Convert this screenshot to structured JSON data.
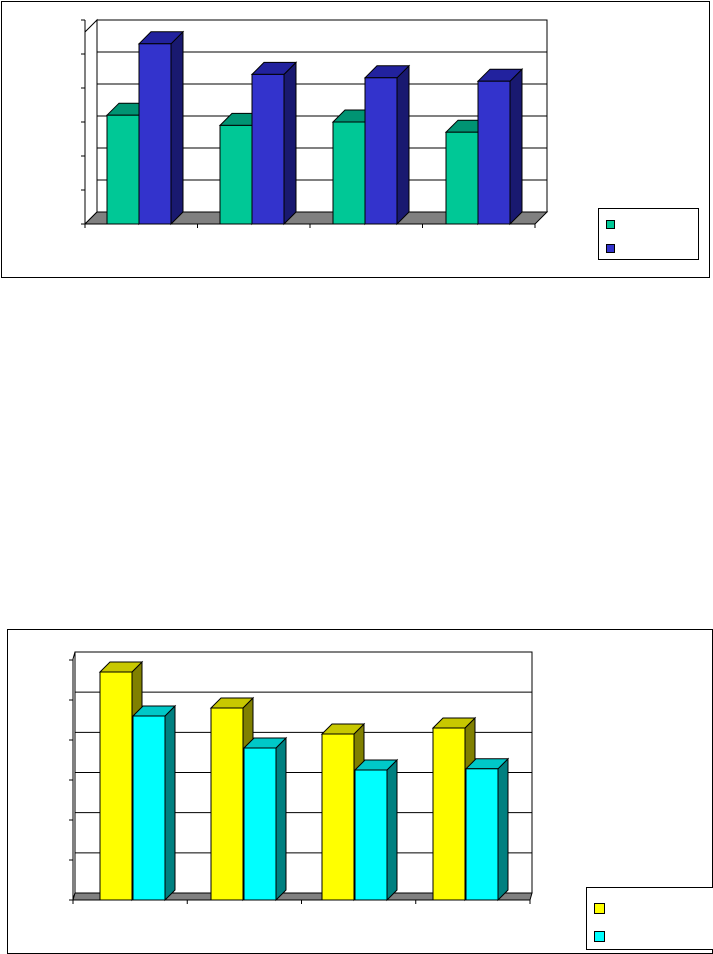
{
  "charts": [
    {
      "chart_data": {
        "type": "bar",
        "categories": [
          "",
          "",
          "",
          ""
        ],
        "series": [
          {
            "values": [
              3.2,
              2.9,
              3.0,
              2.7
            ]
          },
          {
            "values": [
              5.3,
              4.4,
              4.3,
              4.2
            ]
          }
        ],
        "ylim": [
          0,
          6
        ],
        "grid": true,
        "legend_position": "bottom-right",
        "colors": {
          "series": [
            "#00c896",
            "#3333cc"
          ],
          "series_top": [
            "#009473",
            "#22229e"
          ],
          "series_side": [
            "#006b55",
            "#191970"
          ],
          "floor": "#808080"
        }
      }
    },
    {
      "chart_data": {
        "type": "bar",
        "categories": [
          "",
          "",
          "",
          ""
        ],
        "series": [
          {
            "values": [
              5.7,
              4.8,
              4.15,
              4.3
            ]
          },
          {
            "values": [
              4.6,
              3.8,
              3.25,
              3.28
            ]
          }
        ],
        "ylim": [
          0,
          6
        ],
        "grid": true,
        "legend_position": "bottom-right",
        "colors": {
          "series": [
            "#ffff00",
            "#00ffff"
          ],
          "series_top": [
            "#c8c800",
            "#00c8c8"
          ],
          "series_side": [
            "#808000",
            "#008080"
          ],
          "floor": "#808080"
        }
      }
    }
  ]
}
